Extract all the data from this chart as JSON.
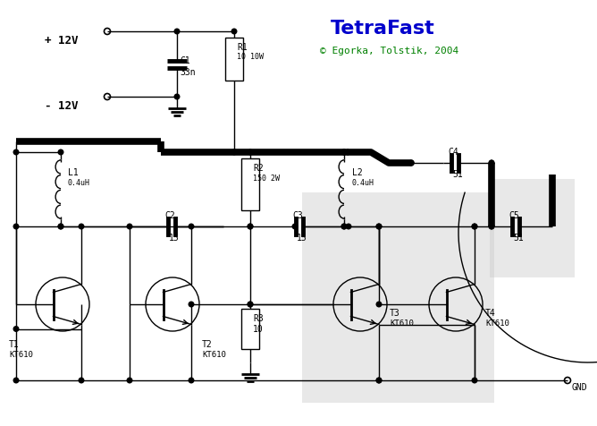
{
  "title": "TetraFast",
  "copyright": "© Egorka, Tolstik, 2004",
  "bg_color": "#ffffff",
  "title_color": "#0000cc",
  "copyright_color": "#008000",
  "supply_pos": "+ 12V",
  "supply_neg": "- 12V",
  "gnd_label": "GND",
  "C1_val": "33n",
  "C2_val": "15",
  "C3_val": "15",
  "C4_val": "51",
  "C5_val": "51",
  "R1_val": "10 10W",
  "R2_val": "150 2W",
  "R3_val": "10",
  "L1_val": "0.4uH",
  "L2_val": "0.4uH",
  "T1_val": "KT610",
  "T2_val": "KT610",
  "T3_val": "KT610",
  "T4_val": "KT610"
}
